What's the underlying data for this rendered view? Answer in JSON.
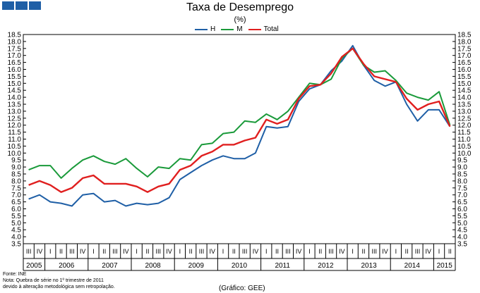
{
  "title": "Taxa de Desemprego",
  "unit": "(%)",
  "colors": {
    "H": "#1f5fa6",
    "M": "#1a9a3a",
    "Total": "#e01f1f",
    "logo": "#1f5fa6"
  },
  "footnotes": {
    "source": "Fonte: INE",
    "note1": "Nota: Quebra de série no 1º trimestre de 2011",
    "note2": "devido à alteração metodológica sem retropolação.",
    "credit": "(Gráfico: GEE)"
  },
  "chart_data": {
    "type": "line",
    "title": "Taxa de Desemprego",
    "ylabel": "(%)",
    "ylim": [
      3.5,
      18.5
    ],
    "y_ticks": [
      "3.5",
      "4.0",
      "4.5",
      "5.0",
      "5.5",
      "6.0",
      "6.5",
      "7.0",
      "7.5",
      "8.0",
      "8.5",
      "9.0",
      "9.5",
      "10.0",
      "10.5",
      "11.0",
      "11.5",
      "12.0",
      "12.5",
      "13.0",
      "13.5",
      "14.0",
      "14.5",
      "15.0",
      "15.5",
      "16.0",
      "16.5",
      "17.0",
      "17.5",
      "18.0",
      "18.5"
    ],
    "legend_position": "top-center",
    "x": [
      "2005 III",
      "2005 IV",
      "2006 I",
      "2006 II",
      "2006 III",
      "2006 IV",
      "2007 I",
      "2007 II",
      "2007 III",
      "2007 IV",
      "2008 I",
      "2008 II",
      "2008 III",
      "2008 IV",
      "2009 I",
      "2009 II",
      "2009 III",
      "2009 IV",
      "2010 I",
      "2010 II",
      "2010 III",
      "2010 IV",
      "2011 I",
      "2011 II",
      "2011 III",
      "2011 IV",
      "2012 I",
      "2012 II",
      "2012 III",
      "2012 IV",
      "2013 I",
      "2013 II",
      "2013 III",
      "2013 IV",
      "2014 I",
      "2014 II",
      "2014 III",
      "2014 IV",
      "2015 I",
      "2015 II"
    ],
    "quarter_labels": [
      "III",
      "IV",
      "I",
      "II",
      "III",
      "IV",
      "I",
      "II",
      "III",
      "IV",
      "I",
      "II",
      "III",
      "IV",
      "I",
      "II",
      "III",
      "IV",
      "I",
      "II",
      "III",
      "IV",
      "I",
      "II",
      "III",
      "IV",
      "I",
      "II",
      "III",
      "IV",
      "I",
      "II",
      "III",
      "IV",
      "I",
      "II",
      "III",
      "IV",
      "I",
      "II"
    ],
    "years": [
      {
        "label": "2005",
        "start": 0,
        "end": 1
      },
      {
        "label": "2006",
        "start": 2,
        "end": 5
      },
      {
        "label": "2007",
        "start": 6,
        "end": 9
      },
      {
        "label": "2008",
        "start": 10,
        "end": 13
      },
      {
        "label": "2009",
        "start": 14,
        "end": 17
      },
      {
        "label": "2010",
        "start": 18,
        "end": 21
      },
      {
        "label": "2011",
        "start": 22,
        "end": 25
      },
      {
        "label": "2012",
        "start": 26,
        "end": 29
      },
      {
        "label": "2013",
        "start": 30,
        "end": 33
      },
      {
        "label": "2014",
        "start": 34,
        "end": 37
      },
      {
        "label": "2015",
        "start": 38,
        "end": 39
      }
    ],
    "series": [
      {
        "name": "H",
        "key": "H",
        "values": [
          6.7,
          7.0,
          6.5,
          6.4,
          6.2,
          7.0,
          7.1,
          6.5,
          6.6,
          6.2,
          6.4,
          6.3,
          6.4,
          6.8,
          8.1,
          8.6,
          9.1,
          9.5,
          9.8,
          9.6,
          9.6,
          10.0,
          11.9,
          11.8,
          11.9,
          13.7,
          14.6,
          14.9,
          15.9,
          16.6,
          17.7,
          16.3,
          15.2,
          14.8,
          15.1,
          13.5,
          12.3,
          13.1,
          13.1,
          11.9
        ]
      },
      {
        "name": "M",
        "key": "M",
        "values": [
          8.8,
          9.1,
          9.1,
          8.2,
          8.9,
          9.5,
          9.8,
          9.4,
          9.2,
          9.6,
          8.9,
          8.3,
          9.0,
          8.9,
          9.6,
          9.5,
          10.6,
          10.7,
          11.4,
          11.5,
          12.3,
          12.2,
          12.8,
          12.4,
          13.0,
          14.0,
          15.0,
          14.9,
          15.3,
          16.8,
          17.5,
          16.3,
          15.8,
          15.9,
          15.2,
          14.3,
          14.0,
          13.8,
          14.4,
          12.0
        ]
      },
      {
        "name": "Total",
        "key": "Total",
        "values": [
          7.7,
          8.0,
          7.7,
          7.2,
          7.5,
          8.2,
          8.4,
          7.8,
          7.8,
          7.8,
          7.6,
          7.2,
          7.6,
          7.8,
          8.8,
          9.1,
          9.8,
          10.1,
          10.6,
          10.6,
          10.9,
          11.1,
          12.4,
          12.1,
          12.4,
          13.9,
          14.8,
          14.9,
          15.7,
          16.9,
          17.5,
          16.4,
          15.5,
          15.3,
          15.1,
          13.9,
          13.1,
          13.5,
          13.7,
          11.9
        ]
      }
    ]
  }
}
